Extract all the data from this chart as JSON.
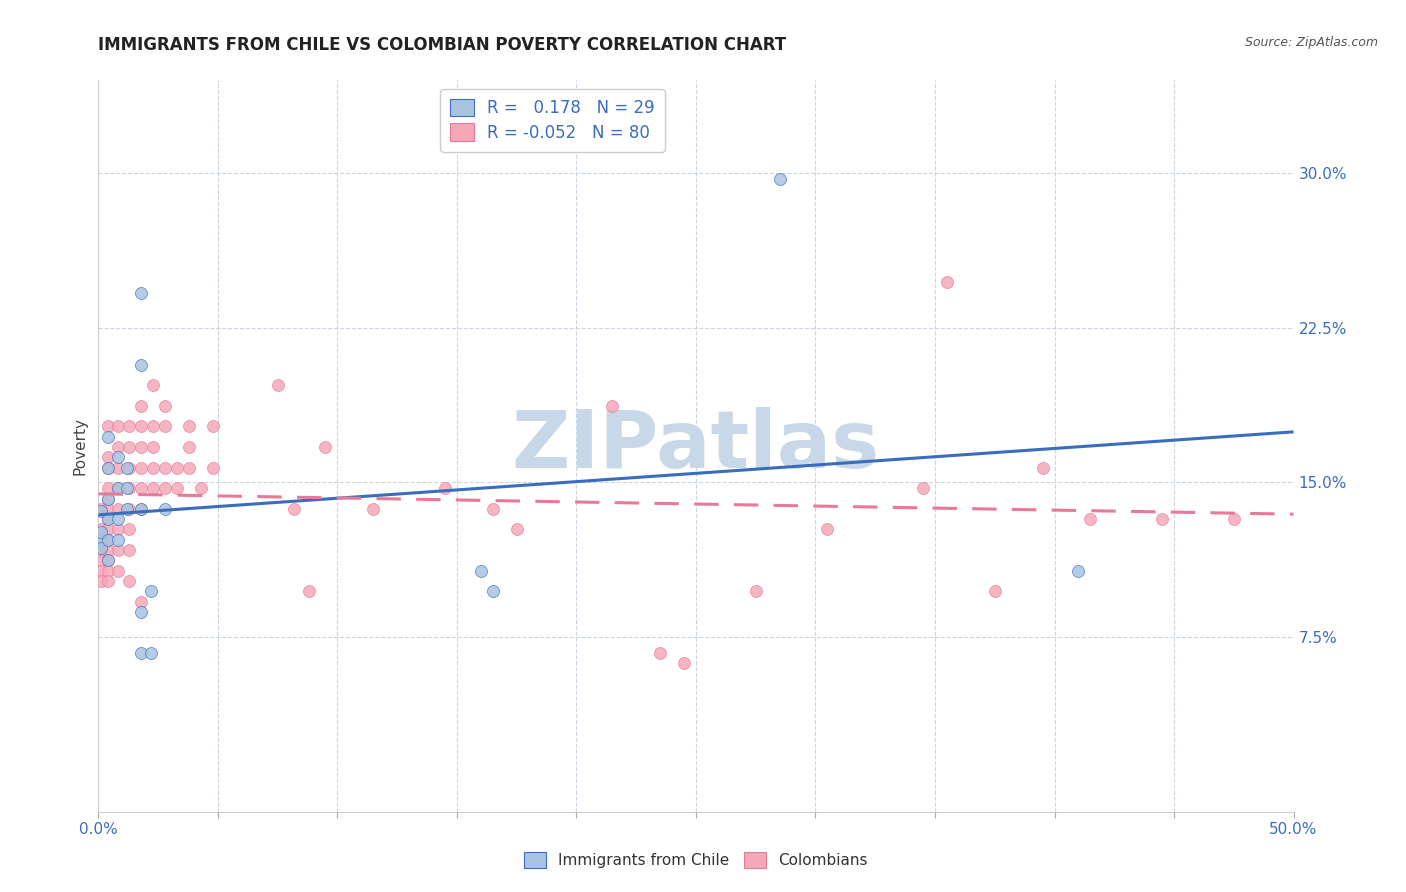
{
  "title": "IMMIGRANTS FROM CHILE VS COLOMBIAN POVERTY CORRELATION CHART",
  "source": "Source: ZipAtlas.com",
  "ylabel": "Poverty",
  "ytick_labels": [
    "7.5%",
    "15.0%",
    "22.5%",
    "30.0%"
  ],
  "ytick_values": [
    0.075,
    0.15,
    0.225,
    0.3
  ],
  "xlim": [
    0.0,
    0.5
  ],
  "ylim": [
    -0.01,
    0.345
  ],
  "r_chile": 0.178,
  "n_chile": 29,
  "r_colombian": -0.052,
  "n_colombian": 80,
  "color_chile": "#a8c4e0",
  "color_colombian": "#f4a8b8",
  "color_trendline_chile": "#3a6ebd",
  "color_trendline_colombian": "#e87a99",
  "watermark": "ZIPatlas",
  "watermark_color": "#c8d8e8",
  "chile_scatter": [
    [
      0.001,
      0.122
    ],
    [
      0.001,
      0.136
    ],
    [
      0.001,
      0.126
    ],
    [
      0.001,
      0.118
    ],
    [
      0.004,
      0.172
    ],
    [
      0.004,
      0.157
    ],
    [
      0.004,
      0.142
    ],
    [
      0.004,
      0.132
    ],
    [
      0.004,
      0.122
    ],
    [
      0.004,
      0.112
    ],
    [
      0.008,
      0.162
    ],
    [
      0.008,
      0.147
    ],
    [
      0.008,
      0.132
    ],
    [
      0.008,
      0.122
    ],
    [
      0.012,
      0.157
    ],
    [
      0.012,
      0.147
    ],
    [
      0.012,
      0.137
    ],
    [
      0.018,
      0.242
    ],
    [
      0.018,
      0.207
    ],
    [
      0.018,
      0.137
    ],
    [
      0.018,
      0.087
    ],
    [
      0.018,
      0.067
    ],
    [
      0.022,
      0.097
    ],
    [
      0.022,
      0.067
    ],
    [
      0.028,
      0.137
    ],
    [
      0.16,
      0.107
    ],
    [
      0.165,
      0.097
    ],
    [
      0.41,
      0.107
    ],
    [
      0.285,
      0.297
    ]
  ],
  "colombian_scatter": [
    [
      0.001,
      0.137
    ],
    [
      0.001,
      0.127
    ],
    [
      0.001,
      0.122
    ],
    [
      0.001,
      0.117
    ],
    [
      0.001,
      0.112
    ],
    [
      0.001,
      0.107
    ],
    [
      0.001,
      0.102
    ],
    [
      0.004,
      0.177
    ],
    [
      0.004,
      0.162
    ],
    [
      0.004,
      0.157
    ],
    [
      0.004,
      0.147
    ],
    [
      0.004,
      0.142
    ],
    [
      0.004,
      0.137
    ],
    [
      0.004,
      0.132
    ],
    [
      0.004,
      0.127
    ],
    [
      0.004,
      0.122
    ],
    [
      0.004,
      0.117
    ],
    [
      0.004,
      0.112
    ],
    [
      0.004,
      0.107
    ],
    [
      0.004,
      0.102
    ],
    [
      0.008,
      0.177
    ],
    [
      0.008,
      0.167
    ],
    [
      0.008,
      0.157
    ],
    [
      0.008,
      0.147
    ],
    [
      0.008,
      0.137
    ],
    [
      0.008,
      0.127
    ],
    [
      0.008,
      0.117
    ],
    [
      0.008,
      0.107
    ],
    [
      0.013,
      0.177
    ],
    [
      0.013,
      0.167
    ],
    [
      0.013,
      0.157
    ],
    [
      0.013,
      0.147
    ],
    [
      0.013,
      0.137
    ],
    [
      0.013,
      0.127
    ],
    [
      0.013,
      0.117
    ],
    [
      0.013,
      0.102
    ],
    [
      0.018,
      0.187
    ],
    [
      0.018,
      0.177
    ],
    [
      0.018,
      0.167
    ],
    [
      0.018,
      0.157
    ],
    [
      0.018,
      0.147
    ],
    [
      0.018,
      0.137
    ],
    [
      0.018,
      0.092
    ],
    [
      0.023,
      0.197
    ],
    [
      0.023,
      0.177
    ],
    [
      0.023,
      0.167
    ],
    [
      0.023,
      0.157
    ],
    [
      0.023,
      0.147
    ],
    [
      0.028,
      0.187
    ],
    [
      0.028,
      0.177
    ],
    [
      0.028,
      0.157
    ],
    [
      0.028,
      0.147
    ],
    [
      0.033,
      0.157
    ],
    [
      0.033,
      0.147
    ],
    [
      0.038,
      0.177
    ],
    [
      0.038,
      0.167
    ],
    [
      0.038,
      0.157
    ],
    [
      0.043,
      0.147
    ],
    [
      0.048,
      0.177
    ],
    [
      0.048,
      0.157
    ],
    [
      0.075,
      0.197
    ],
    [
      0.082,
      0.137
    ],
    [
      0.088,
      0.097
    ],
    [
      0.095,
      0.167
    ],
    [
      0.115,
      0.137
    ],
    [
      0.145,
      0.147
    ],
    [
      0.165,
      0.137
    ],
    [
      0.175,
      0.127
    ],
    [
      0.215,
      0.187
    ],
    [
      0.235,
      0.067
    ],
    [
      0.245,
      0.062
    ],
    [
      0.275,
      0.097
    ],
    [
      0.305,
      0.127
    ],
    [
      0.345,
      0.147
    ],
    [
      0.355,
      0.247
    ],
    [
      0.375,
      0.097
    ],
    [
      0.395,
      0.157
    ],
    [
      0.415,
      0.132
    ],
    [
      0.445,
      0.132
    ],
    [
      0.475,
      0.132
    ]
  ]
}
